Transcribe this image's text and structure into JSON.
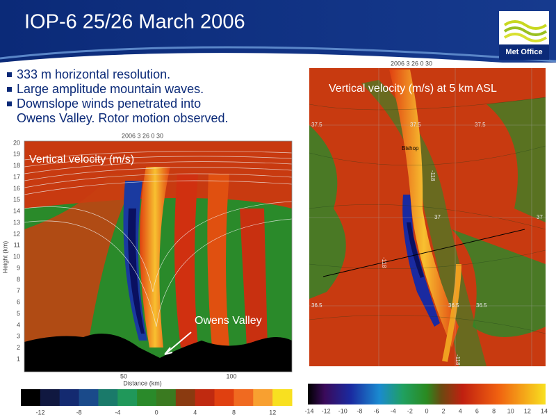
{
  "header": {
    "title": "IOP-6 25/26 March 2006",
    "logo": "Met Office"
  },
  "bullets": [
    [
      "333 m horizontal resolution."
    ],
    [
      "Large amplitude mountain waves."
    ],
    [
      "Downslope winds penetrated into",
      "Owens Valley. Rotor motion observed."
    ]
  ],
  "left_plot": {
    "timestamp": "2006   3  26    0  30",
    "label": "Vertical velocity (m/s)",
    "annotation": "Owens Valley",
    "x_axis_label": "Distance (km)",
    "y_axis_label": "Height (km)",
    "yticks": [
      1,
      2,
      3,
      4,
      5,
      6,
      7,
      8,
      9,
      10,
      11,
      12,
      13,
      14,
      15,
      16,
      17,
      18,
      19,
      20
    ],
    "xticks": [
      50,
      100
    ],
    "colorbar_labels": [
      -12,
      -8,
      -4,
      0,
      4,
      8,
      12
    ]
  },
  "right_plot": {
    "timestamp": "2006   3  26    0  30",
    "label": "Vertical velocity (m/s) at 5 km ASL",
    "place": "Bishop",
    "map_labels": [
      "37.5",
      "37.5",
      "37.5",
      "37",
      "37",
      "36.5",
      "36.5",
      "36.5",
      "-118",
      "-118",
      "-118"
    ],
    "colorbar_labels": [
      -14,
      -12,
      -10,
      -8,
      -6,
      -4,
      -2,
      0,
      2,
      4,
      6,
      8,
      10,
      12,
      14
    ]
  }
}
